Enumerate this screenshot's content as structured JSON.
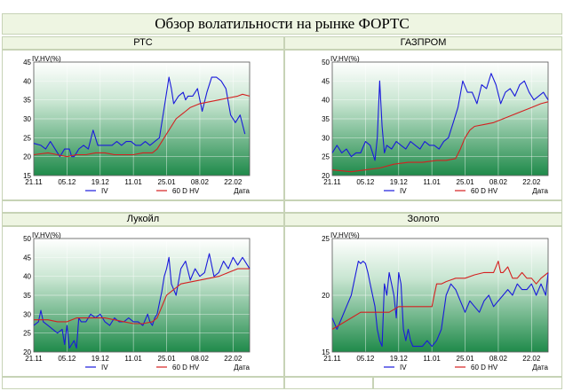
{
  "page": {
    "title": "Обзор волатильности на рынке ФОРТС"
  },
  "chart_data": [
    {
      "type": "line",
      "header": "РТС",
      "ylabel": "IV,HV(%)",
      "xlabel": "Дата",
      "ylim": [
        15,
        45
      ],
      "yticks": [
        15,
        20,
        25,
        30,
        35,
        40,
        45
      ],
      "xlim": [
        0,
        91
      ],
      "xticks": [
        {
          "x": 0,
          "label": "21.11"
        },
        {
          "x": 14,
          "label": "05.12"
        },
        {
          "x": 28,
          "label": "19.12"
        },
        {
          "x": 42,
          "label": "11.01"
        },
        {
          "x": 56,
          "label": "25.01"
        },
        {
          "x": 70,
          "label": "08.02"
        },
        {
          "x": 84,
          "label": "22.02"
        }
      ],
      "legend": [
        "IV",
        "60 D HV"
      ],
      "series": [
        {
          "name": "IV",
          "color": "#1a1adb",
          "x": [
            0,
            3,
            5,
            7,
            9,
            11,
            13,
            15,
            16,
            17,
            18,
            19,
            21,
            23,
            25,
            27,
            29,
            31,
            33,
            35,
            37,
            39,
            41,
            43,
            45,
            47,
            49,
            51,
            53,
            55,
            57,
            58,
            59,
            61,
            63,
            64,
            65,
            67,
            69,
            71,
            73,
            75,
            77,
            79,
            81,
            83,
            85,
            87,
            89
          ],
          "values": [
            23.5,
            23,
            22,
            24,
            22,
            20,
            22,
            22,
            20,
            20,
            21,
            22,
            23,
            22,
            27,
            23,
            23,
            23,
            23,
            24,
            23,
            24,
            24,
            23,
            23,
            24,
            23,
            24,
            25,
            33,
            41,
            38,
            34,
            36,
            37,
            35,
            36,
            36,
            38,
            32,
            37,
            41,
            41,
            40,
            38,
            31,
            29,
            31,
            26
          ]
        },
        {
          "name": "60 D HV",
          "color": "#d42020",
          "x": [
            0,
            6,
            10,
            14,
            18,
            22,
            26,
            30,
            34,
            38,
            42,
            46,
            50,
            52,
            54,
            56,
            58,
            60,
            62,
            64,
            66,
            70,
            74,
            78,
            82,
            86,
            88,
            91
          ],
          "values": [
            20.5,
            21,
            20.5,
            20,
            20.5,
            20.5,
            21,
            21,
            20.5,
            20.5,
            20.5,
            21,
            21,
            22,
            24,
            26,
            28,
            30,
            31,
            32,
            33,
            34,
            34.5,
            35,
            35.5,
            36,
            36.5,
            36
          ]
        }
      ]
    },
    {
      "type": "line",
      "header": "ГАЗПРОМ",
      "ylabel": "IV,HV(%)",
      "xlabel": "Дата",
      "ylim": [
        20,
        50
      ],
      "yticks": [
        20,
        25,
        30,
        35,
        40,
        45,
        50
      ],
      "xlim": [
        0,
        91
      ],
      "xticks": [
        {
          "x": 0,
          "label": "21.11"
        },
        {
          "x": 14,
          "label": "05.12"
        },
        {
          "x": 28,
          "label": "19.12"
        },
        {
          "x": 42,
          "label": "11.01"
        },
        {
          "x": 56,
          "label": "25.01"
        },
        {
          "x": 70,
          "label": "08.02"
        },
        {
          "x": 84,
          "label": "22.02"
        }
      ],
      "legend": [
        "IV",
        "60 D HV"
      ],
      "series": [
        {
          "name": "IV",
          "color": "#1a1adb",
          "x": [
            0,
            2,
            4,
            6,
            8,
            10,
            12,
            14,
            16,
            18,
            19,
            20,
            21,
            22,
            23,
            25,
            27,
            29,
            31,
            33,
            35,
            37,
            39,
            41,
            43,
            45,
            47,
            49,
            51,
            53,
            55,
            57,
            59,
            61,
            63,
            65,
            67,
            69,
            71,
            73,
            75,
            77,
            79,
            81,
            83,
            85,
            87,
            89,
            91
          ],
          "values": [
            26,
            28,
            26,
            27,
            25,
            26,
            26,
            29,
            28,
            24,
            30,
            45,
            33,
            26,
            28,
            27,
            29,
            28,
            27,
            29,
            28,
            27,
            29,
            28,
            28,
            27,
            29,
            30,
            34,
            38,
            45,
            42,
            42,
            39,
            44,
            43,
            47,
            44,
            39,
            42,
            43,
            41,
            44,
            45,
            42,
            40,
            41,
            42,
            40
          ]
        },
        {
          "name": "60 D HV",
          "color": "#d42020",
          "x": [
            0,
            8,
            14,
            20,
            26,
            32,
            38,
            44,
            48,
            52,
            54,
            56,
            58,
            60,
            64,
            68,
            72,
            76,
            80,
            84,
            88,
            91
          ],
          "values": [
            21.5,
            21,
            21.5,
            22,
            23,
            23.5,
            23.5,
            24,
            24,
            24.5,
            27,
            30,
            32,
            33,
            33.5,
            34,
            35,
            36,
            37,
            38,
            39,
            39.5
          ]
        }
      ]
    },
    {
      "type": "line",
      "header": "Лукойл",
      "ylabel": "IV,HV(%)",
      "xlabel": "Дата",
      "ylim": [
        20,
        50
      ],
      "yticks": [
        20,
        25,
        30,
        35,
        40,
        45,
        50
      ],
      "xlim": [
        0,
        91
      ],
      "xticks": [
        {
          "x": 0,
          "label": "21.11"
        },
        {
          "x": 14,
          "label": "05.12"
        },
        {
          "x": 28,
          "label": "19.12"
        },
        {
          "x": 42,
          "label": "11.01"
        },
        {
          "x": 56,
          "label": "25.01"
        },
        {
          "x": 70,
          "label": "08.02"
        },
        {
          "x": 84,
          "label": "22.02"
        }
      ],
      "legend": [
        "IV",
        "60 D HV"
      ],
      "series": [
        {
          "name": "IV",
          "color": "#1a1adb",
          "x": [
            0,
            2,
            3,
            4,
            6,
            8,
            10,
            12,
            13,
            14,
            15,
            16,
            17,
            18,
            19,
            20,
            22,
            24,
            26,
            28,
            30,
            32,
            34,
            36,
            38,
            40,
            42,
            44,
            46,
            48,
            49,
            50,
            51,
            52,
            53,
            54,
            55,
            56,
            57,
            58,
            60,
            62,
            64,
            66,
            68,
            70,
            72,
            74,
            76,
            78,
            80,
            82,
            84,
            86,
            88,
            91
          ],
          "values": [
            27,
            28,
            31,
            28,
            27,
            26,
            25,
            26,
            22,
            27,
            21,
            22,
            23,
            21,
            29,
            28,
            28,
            30,
            29,
            30,
            28,
            27,
            29,
            28,
            28,
            29,
            28,
            28,
            27,
            30,
            28,
            27,
            29,
            30,
            33,
            36,
            40,
            42,
            45,
            38,
            35,
            42,
            44,
            39,
            42,
            40,
            41,
            46,
            40,
            41,
            44,
            42,
            45,
            43,
            45,
            42
          ]
        },
        {
          "name": "60 D HV",
          "color": "#d42020",
          "x": [
            0,
            6,
            10,
            14,
            18,
            22,
            26,
            30,
            34,
            38,
            42,
            46,
            50,
            52,
            54,
            56,
            58,
            60,
            62,
            66,
            70,
            74,
            78,
            82,
            86,
            91
          ],
          "values": [
            28.5,
            28.5,
            28,
            28,
            29,
            29,
            29,
            29,
            28.5,
            28,
            27.5,
            27.5,
            28,
            29,
            32,
            35,
            36,
            37,
            38,
            38.5,
            39,
            39.5,
            40,
            41,
            42,
            42
          ]
        }
      ]
    },
    {
      "type": "line",
      "header": "Золото",
      "ylabel": "IV,HV(%)",
      "xlabel": "Дата",
      "ylim": [
        15,
        25
      ],
      "yticks": [
        15,
        20,
        25
      ],
      "xlim": [
        0,
        91
      ],
      "xticks": [
        {
          "x": 0,
          "label": "21.11"
        },
        {
          "x": 14,
          "label": "05.12"
        },
        {
          "x": 28,
          "label": "19.12"
        },
        {
          "x": 42,
          "label": "11.01"
        },
        {
          "x": 56,
          "label": "25.01"
        },
        {
          "x": 70,
          "label": "08.02"
        },
        {
          "x": 84,
          "label": "22.02"
        }
      ],
      "legend": [
        "IV",
        "60 D HV"
      ],
      "series": [
        {
          "name": "IV",
          "color": "#1a1adb",
          "x": [
            0,
            2,
            4,
            6,
            8,
            10,
            11,
            12,
            13,
            14,
            15,
            16,
            17,
            18,
            19,
            20,
            21,
            22,
            23,
            24,
            25,
            26,
            27,
            28,
            29,
            30,
            31,
            32,
            33,
            34,
            36,
            38,
            40,
            42,
            44,
            46,
            48,
            50,
            52,
            54,
            56,
            58,
            60,
            62,
            64,
            66,
            68,
            70,
            72,
            74,
            76,
            78,
            80,
            82,
            84,
            86,
            88,
            90,
            91
          ],
          "values": [
            18,
            17,
            18,
            19,
            20,
            22,
            23,
            22.8,
            23,
            22.8,
            22,
            21,
            20,
            19,
            17,
            16,
            15.5,
            21,
            20,
            22,
            21,
            20,
            18,
            22,
            21,
            17,
            16,
            17,
            16,
            15.5,
            15.5,
            15.5,
            16,
            15.5,
            16,
            17,
            20,
            21,
            20.5,
            19.5,
            18.5,
            19.5,
            19,
            18.5,
            19.5,
            20,
            19,
            19.5,
            20,
            20.5,
            20,
            21,
            20.5,
            20.5,
            21,
            20,
            21,
            20,
            22
          ]
        },
        {
          "name": "60 D HV",
          "color": "#d42020",
          "x": [
            0,
            4,
            8,
            12,
            16,
            20,
            24,
            28,
            32,
            36,
            40,
            42,
            43,
            44,
            46,
            48,
            52,
            56,
            60,
            64,
            68,
            70,
            71,
            72,
            74,
            76,
            78,
            80,
            82,
            84,
            86,
            88,
            91
          ],
          "values": [
            17,
            17.5,
            18,
            18.5,
            18.5,
            18.5,
            18.5,
            19,
            19,
            19,
            19,
            19,
            20,
            21,
            21,
            21.2,
            21.5,
            21.5,
            21.8,
            22,
            22,
            23,
            22,
            22,
            22.5,
            21.5,
            21.5,
            22,
            21.5,
            21.5,
            21,
            21.5,
            22
          ]
        }
      ]
    }
  ]
}
